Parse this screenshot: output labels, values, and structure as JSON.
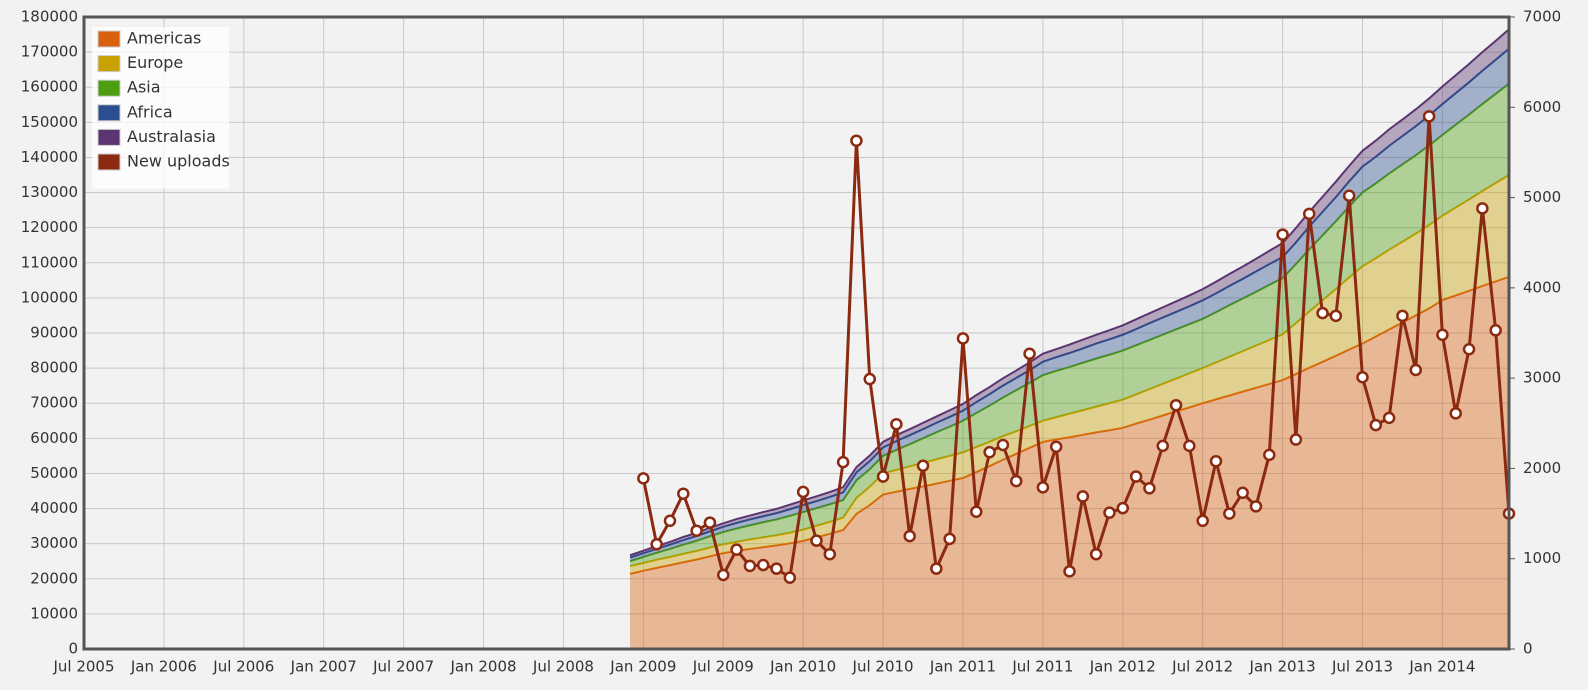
{
  "chart_data": {
    "type": "area",
    "x": [
      "Dec 2008",
      "Jan 2009",
      "Feb 2009",
      "Mar 2009",
      "Apr 2009",
      "May 2009",
      "Jun 2009",
      "Jul 2009",
      "Aug 2009",
      "Sep 2009",
      "Oct 2009",
      "Nov 2009",
      "Dec 2009",
      "Jan 2010",
      "Feb 2010",
      "Mar 2010",
      "Apr 2010",
      "May 2010",
      "Jun 2010",
      "Jul 2010",
      "Aug 2010",
      "Sep 2010",
      "Oct 2010",
      "Nov 2010",
      "Dec 2010",
      "Jan 2011",
      "Feb 2011",
      "Mar 2011",
      "Apr 2011",
      "May 2011",
      "Jun 2011",
      "Jul 2011",
      "Aug 2011",
      "Sep 2011",
      "Oct 2011",
      "Nov 2011",
      "Dec 2011",
      "Jan 2012",
      "Feb 2012",
      "Mar 2012",
      "Apr 2012",
      "May 2012",
      "Jun 2012",
      "Jul 2012",
      "Aug 2012",
      "Sep 2012",
      "Oct 2012",
      "Nov 2012",
      "Dec 2012",
      "Jan 2013",
      "Feb 2013",
      "Mar 2013",
      "Apr 2013",
      "May 2013",
      "Jun 2013",
      "Jul 2013",
      "Aug 2013",
      "Sep 2013",
      "Oct 2013",
      "Nov 2013",
      "Dec 2013",
      "Jan 2014",
      "Feb 2014",
      "Mar 2014",
      "Apr 2014",
      "May 2014",
      "Jun 2014"
    ],
    "series": [
      {
        "name": "Americas",
        "color": "#d9600c",
        "values": [
          21400,
          22300,
          23100,
          23900,
          24700,
          25500,
          26400,
          27300,
          27900,
          28500,
          29000,
          29500,
          30100,
          30800,
          31800,
          32800,
          33900,
          38500,
          41000,
          44000,
          44800,
          45600,
          46300,
          47100,
          47900,
          48700,
          50400,
          52100,
          53900,
          55600,
          57300,
          59000,
          59700,
          60300,
          61000,
          61700,
          62300,
          63000,
          64200,
          65300,
          66500,
          67700,
          68800,
          70000,
          71100,
          72200,
          73300,
          74400,
          75500,
          76600,
          78300,
          80100,
          81800,
          83500,
          85300,
          87000,
          89000,
          91000,
          93000,
          95000,
          97000,
          99400,
          100700,
          102000,
          103400,
          104700,
          106000
        ]
      },
      {
        "name": "Europe",
        "color": "#c9a100",
        "values": [
          2200,
          2200,
          2300,
          2300,
          2400,
          2400,
          2500,
          2500,
          2600,
          2700,
          2800,
          2900,
          3000,
          3200,
          3300,
          3400,
          3500,
          4500,
          5200,
          6000,
          6200,
          6400,
          6700,
          6900,
          7100,
          7300,
          7100,
          6900,
          6700,
          6400,
          6200,
          6000,
          6300,
          6700,
          7000,
          7300,
          7700,
          8000,
          8300,
          8700,
          9000,
          9300,
          9700,
          10000,
          10500,
          11000,
          11500,
          12000,
          12500,
          13000,
          14500,
          16000,
          17500,
          19000,
          20500,
          22000,
          22300,
          22700,
          23000,
          23300,
          23700,
          24000,
          25000,
          26000,
          27000,
          28000,
          29000
        ]
      },
      {
        "name": "Asia",
        "color": "#4e9e12",
        "values": [
          1400,
          1700,
          2000,
          2300,
          2600,
          2900,
          3200,
          3500,
          3800,
          4000,
          4300,
          4500,
          4800,
          5000,
          5000,
          5000,
          5000,
          5000,
          5000,
          5000,
          5700,
          6300,
          7000,
          7700,
          8300,
          9000,
          9700,
          10300,
          11000,
          11700,
          12300,
          13000,
          13200,
          13300,
          13500,
          13700,
          13800,
          14000,
          14000,
          14000,
          14000,
          14000,
          14000,
          14000,
          14300,
          14700,
          15000,
          15300,
          15700,
          16000,
          16800,
          17700,
          18500,
          19300,
          20200,
          21000,
          21300,
          21700,
          22000,
          22300,
          22700,
          23000,
          23600,
          24200,
          24800,
          25400,
          26000
        ]
      },
      {
        "name": "Africa",
        "color": "#2a4e8f",
        "values": [
          1000,
          1100,
          1100,
          1200,
          1300,
          1400,
          1400,
          1500,
          1600,
          1700,
          1700,
          1800,
          1900,
          2000,
          2000,
          2100,
          2200,
          2300,
          2300,
          2400,
          2500,
          2600,
          2600,
          2700,
          2800,
          2900,
          3100,
          3300,
          3400,
          3500,
          3600,
          3800,
          3900,
          4000,
          4100,
          4300,
          4400,
          4500,
          4600,
          4800,
          4900,
          5000,
          5100,
          5300,
          5400,
          5500,
          5600,
          5800,
          5900,
          6000,
          6200,
          6500,
          6700,
          6900,
          7200,
          7400,
          7600,
          7900,
          8100,
          8300,
          8500,
          8800,
          9000,
          9200,
          9500,
          9700,
          10000
        ]
      },
      {
        "name": "Australasia",
        "color": "#5b3571",
        "values": [
          700,
          700,
          800,
          800,
          900,
          900,
          1000,
          1000,
          1100,
          1100,
          1200,
          1200,
          1300,
          1300,
          1400,
          1400,
          1500,
          1500,
          1600,
          1600,
          1700,
          1700,
          1800,
          1800,
          1900,
          1900,
          2000,
          2000,
          2100,
          2100,
          2200,
          2300,
          2300,
          2400,
          2500,
          2500,
          2600,
          2700,
          2800,
          2800,
          2900,
          3000,
          3100,
          3200,
          3300,
          3400,
          3500,
          3600,
          3800,
          4000,
          4100,
          4200,
          4300,
          4400,
          4400,
          4500,
          4600,
          4700,
          4700,
          4800,
          4900,
          5000,
          5100,
          5200,
          5300,
          5400,
          5500
        ]
      },
      {
        "name": "New uploads",
        "color": "#8b2a10",
        "type": "line",
        "axis": "y2",
        "values": [
          null,
          1890,
          1160,
          1420,
          1720,
          1310,
          1400,
          820,
          1100,
          920,
          930,
          890,
          790,
          1740,
          1200,
          1050,
          2070,
          5630,
          2990,
          1910,
          2490,
          1250,
          2030,
          890,
          1220,
          3440,
          1520,
          2180,
          2260,
          1860,
          3270,
          1790,
          2240,
          860,
          1690,
          1050,
          1510,
          1560,
          1910,
          1780,
          2250,
          2700,
          2250,
          1420,
          2080,
          1500,
          1730,
          1580,
          2150,
          4590,
          2320,
          4820,
          3720,
          3690,
          5020,
          3010,
          2480,
          2560,
          3690,
          3090,
          5900,
          3480,
          2610,
          3320,
          4880,
          3530,
          1500
        ]
      }
    ],
    "xlim": [
      "Jul 2005",
      "Jun 2014"
    ],
    "xticks": [
      "Jul 2005",
      "Jan 2006",
      "Jul 2006",
      "Jan 2007",
      "Jul 2007",
      "Jan 2008",
      "Jul 2008",
      "Jan 2009",
      "Jul 2009",
      "Jan 2010",
      "Jul 2010",
      "Jan 2011",
      "Jul 2011",
      "Jan 2012",
      "Jul 2012",
      "Jan 2013",
      "Jul 2013",
      "Jan 2014"
    ],
    "ylim": [
      0,
      180000
    ],
    "yticks": [
      0,
      10000,
      20000,
      30000,
      40000,
      50000,
      60000,
      70000,
      80000,
      90000,
      100000,
      110000,
      120000,
      130000,
      140000,
      150000,
      160000,
      170000,
      180000
    ],
    "y2lim": [
      0,
      7000
    ],
    "y2ticks": [
      0,
      1000,
      2000,
      3000,
      4000,
      5000,
      6000,
      7000
    ],
    "stacked": true,
    "grid": true,
    "legend": "upper left"
  }
}
